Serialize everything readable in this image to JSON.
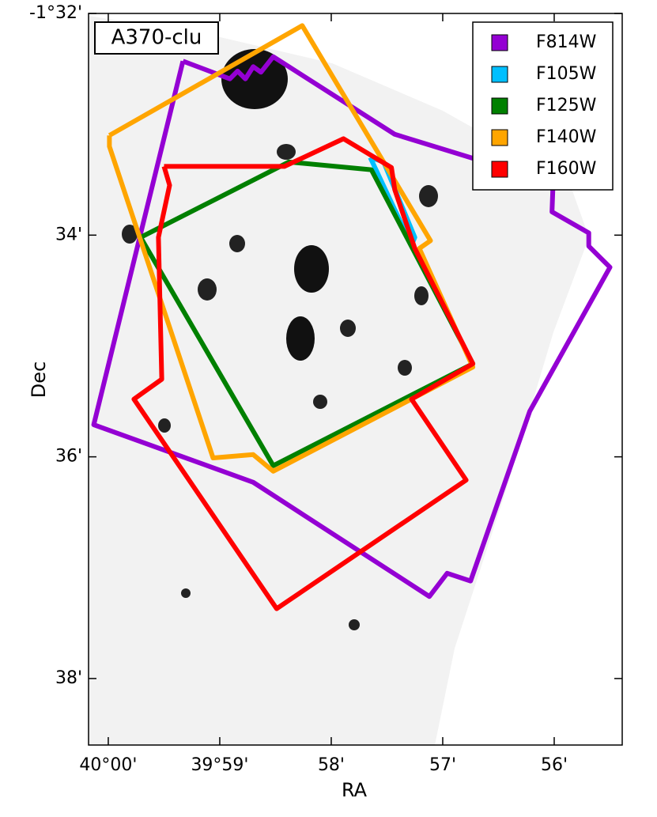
{
  "chart_data": {
    "type": "footprint",
    "label": "A370-clu",
    "xlabel": "RA",
    "ylabel": "Dec",
    "xlim": [
      2400.177,
      2395.39
    ],
    "ylim": [
      -98.6,
      -92
    ],
    "xticks": [
      {
        "value": 2400,
        "label": "40°00'"
      },
      {
        "value": 2399,
        "label": "39°59'"
      },
      {
        "value": 2398,
        "label": "58'"
      },
      {
        "value": 2397,
        "label": "57'"
      },
      {
        "value": 2396,
        "label": "56'"
      }
    ],
    "yticks": [
      {
        "value": -92,
        "label": "-1°32'"
      },
      {
        "value": -94,
        "label": "34'"
      },
      {
        "value": -96,
        "label": "36'"
      },
      {
        "value": -98,
        "label": "38'"
      }
    ],
    "legend": "upper right",
    "series": [
      {
        "name": "F814W",
        "color": "#9400d3",
        "x": [
          2399.33,
          2398.91,
          2398.84,
          2398.77,
          2398.7,
          2398.63,
          2398.52,
          2397.43,
          2396.75,
          2396.01,
          2396.02,
          2395.69,
          2395.69,
          2395.5,
          2396.22,
          2396.75,
          2396.96,
          2397.12,
          2398.7,
          2400.13,
          2399.33
        ],
        "y": [
          -92.43,
          -92.59,
          -92.52,
          -92.59,
          -92.48,
          -92.53,
          -92.39,
          -93.09,
          -93.3,
          -93.52,
          -93.79,
          -93.98,
          -94.1,
          -94.29,
          -95.59,
          -97.12,
          -97.05,
          -97.26,
          -96.23,
          -95.71,
          -92.43
        ]
      },
      {
        "name": "F105W",
        "color": "#00bfff",
        "x": [
          2397.65,
          2397.53,
          2397.25,
          2397.28,
          2397.65
        ],
        "y": [
          -93.3,
          -93.34,
          -94.02,
          -94.09,
          -93.3
        ]
      },
      {
        "name": "F125W",
        "color": "#008000",
        "x": [
          2399.71,
          2398.38,
          2397.64,
          2396.73,
          2398.52,
          2399.71
        ],
        "y": [
          -94.02,
          -93.34,
          -93.41,
          -95.16,
          -96.08,
          -94.02
        ]
      },
      {
        "name": "F140W",
        "color": "#ffa500",
        "x": [
          2399.99,
          2398.26,
          2397.11,
          2397.21,
          2396.73,
          2398.52,
          2398.7,
          2399.06,
          2399.99,
          2399.99
        ],
        "y": [
          -93.1,
          -92.11,
          -94.05,
          -94.12,
          -95.19,
          -96.13,
          -95.98,
          -96.01,
          -93.2,
          -93.1
        ]
      },
      {
        "name": "F160W",
        "color": "#ff0000",
        "x": [
          2399.5,
          2398.42,
          2397.89,
          2397.46,
          2397.43,
          2397.25,
          2396.73,
          2397.28,
          2396.79,
          2398.49,
          2399.77,
          2399.52,
          2399.55,
          2399.45,
          2399.5
        ],
        "y": [
          -93.38,
          -93.38,
          -93.13,
          -93.39,
          -93.59,
          -94.12,
          -95.16,
          -95.48,
          -96.21,
          -97.37,
          -95.48,
          -95.3,
          -94.02,
          -93.55,
          -93.38
        ]
      }
    ]
  }
}
